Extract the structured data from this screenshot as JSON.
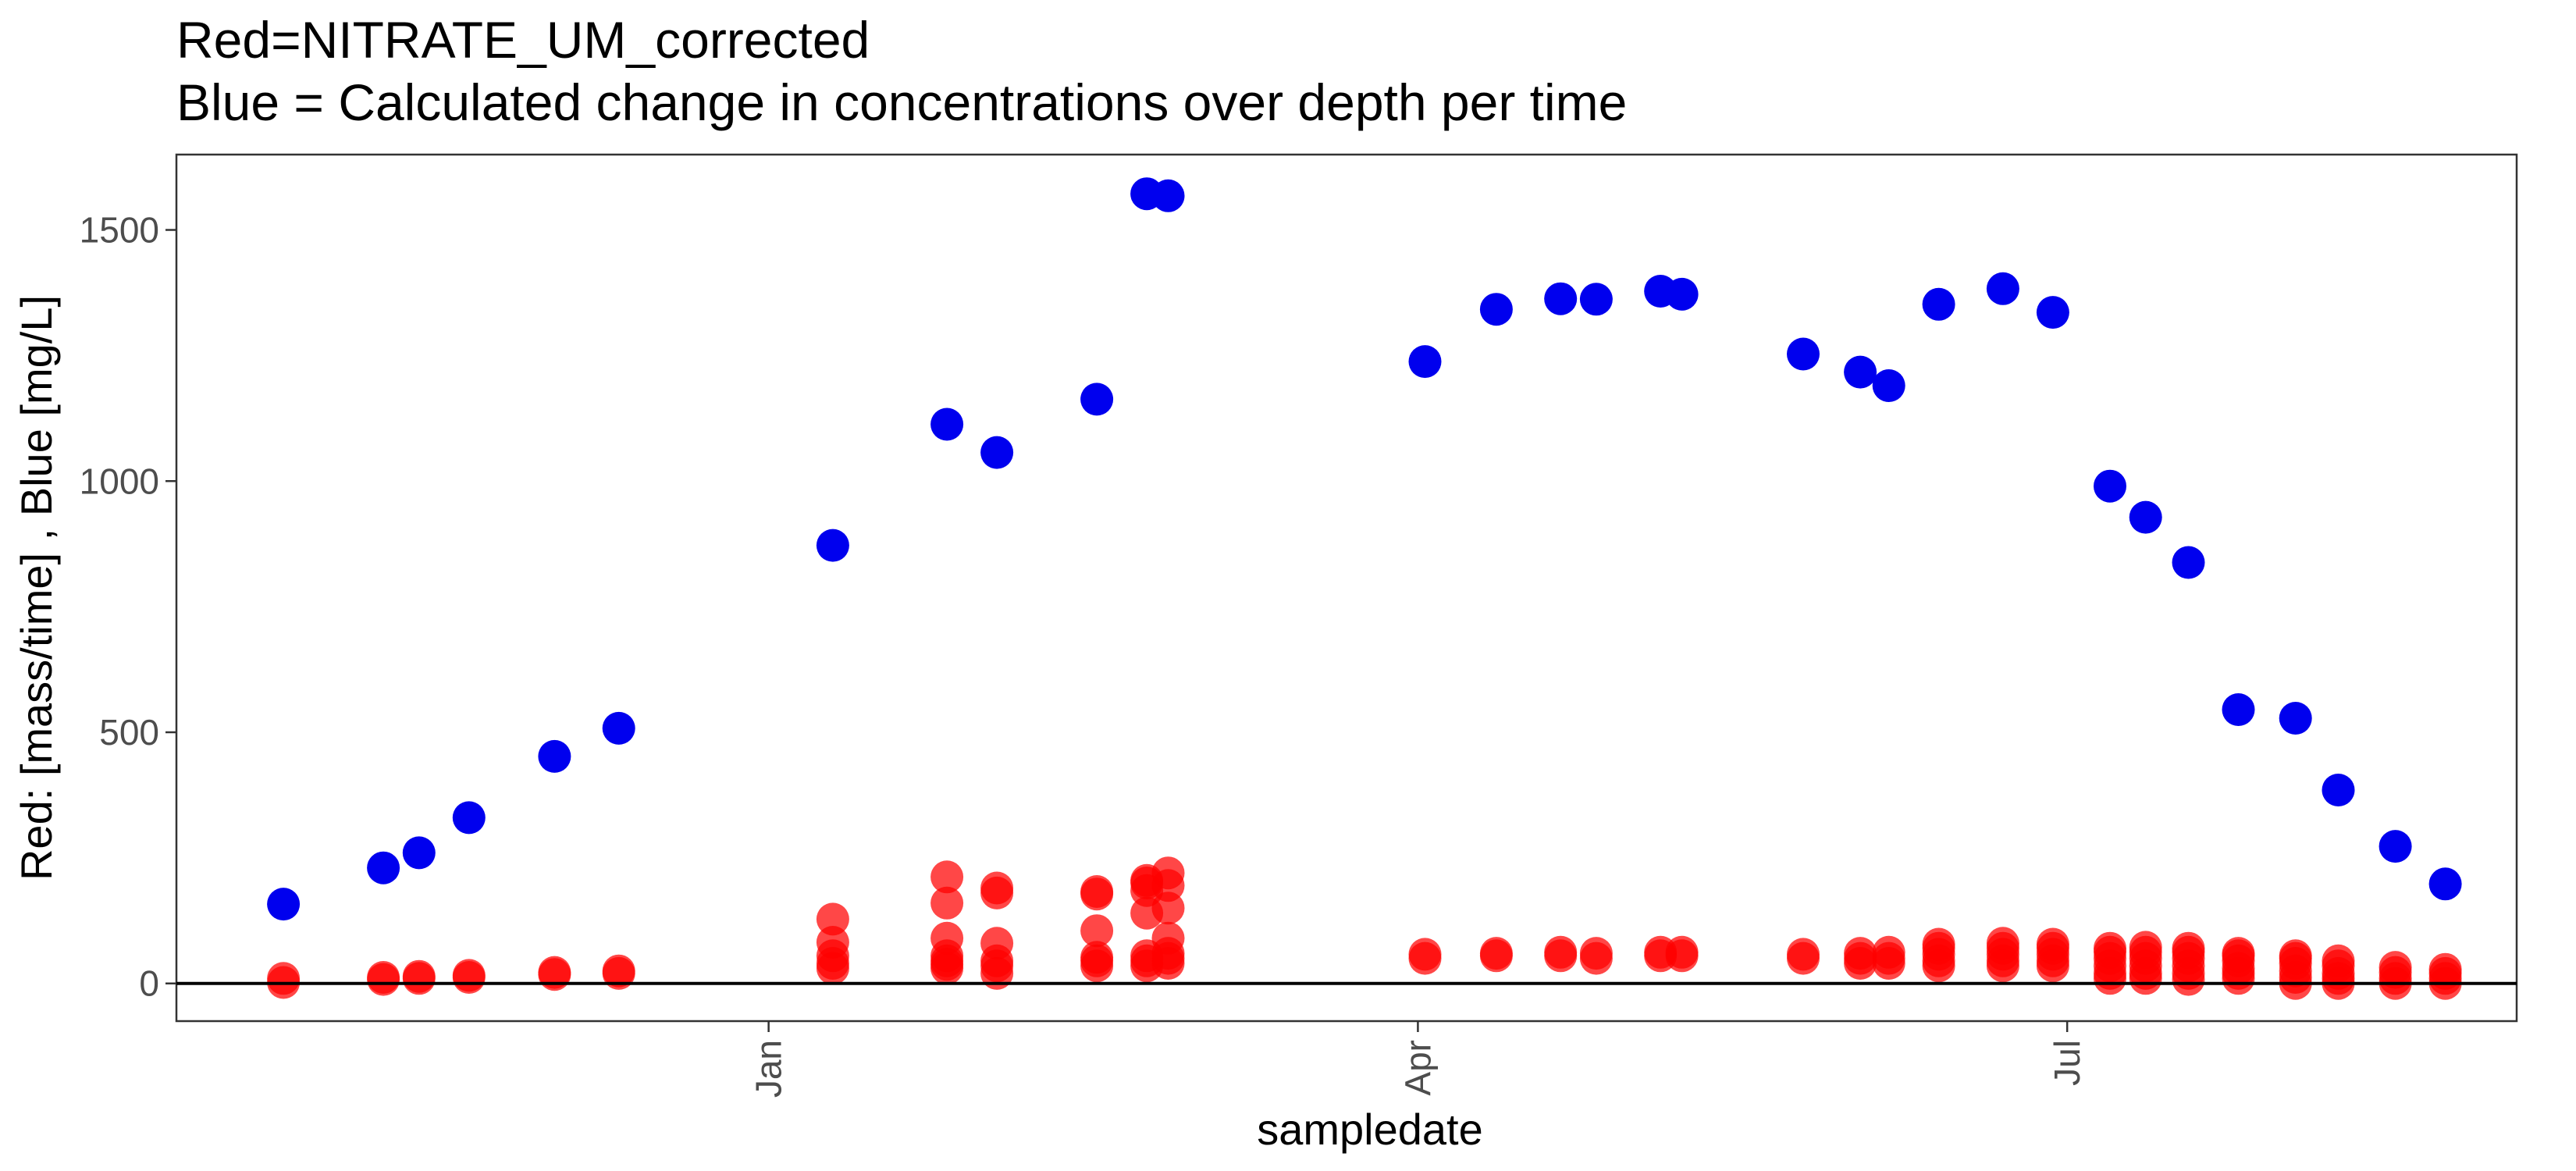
{
  "chart_data": {
    "type": "scatter",
    "title": "Red=NITRATE_UM_corrected",
    "subtitle": "Blue = Calculated change in concentrations over depth per time",
    "xlabel": "sampledate",
    "ylabel": "Red: [mass/time] , Blue [mg/L]",
    "x_ticks": [
      "Jan",
      "Apr",
      "Jul"
    ],
    "y_ticks": [
      0,
      500,
      1000,
      1500
    ],
    "ylim": [
      -75,
      1650
    ],
    "xlim": [
      "2007-10-10",
      "2008-09-02"
    ],
    "x_tick_dates": [
      "2008-01-01",
      "2008-04-01",
      "2008-07-01"
    ],
    "grid": false,
    "hline_y": 0,
    "colors": {
      "blue_series": "#0000ee",
      "red_series": "#ff0000",
      "hline": "#000000",
      "panel_border": "#333333"
    },
    "blue_points": [
      [
        "2007-10-25",
        158
      ],
      [
        "2007-11-08",
        230
      ],
      [
        "2007-11-13",
        260
      ],
      [
        "2007-11-20",
        330
      ],
      [
        "2007-12-02",
        452
      ],
      [
        "2007-12-11",
        508
      ],
      [
        "2008-01-10",
        872
      ],
      [
        "2008-01-26",
        1113
      ],
      [
        "2008-02-02",
        1057
      ],
      [
        "2008-02-16",
        1163
      ],
      [
        "2008-02-23",
        1572
      ],
      [
        "2008-02-26",
        1568
      ],
      [
        "2008-04-02",
        1238
      ],
      [
        "2008-04-12",
        1342
      ],
      [
        "2008-04-21",
        1363
      ],
      [
        "2008-04-26",
        1362
      ],
      [
        "2008-05-05",
        1378
      ],
      [
        "2008-05-08",
        1372
      ],
      [
        "2008-05-25",
        1253
      ],
      [
        "2008-06-02",
        1217
      ],
      [
        "2008-06-06",
        1190
      ],
      [
        "2008-06-13",
        1352
      ],
      [
        "2008-06-22",
        1383
      ],
      [
        "2008-06-29",
        1336
      ],
      [
        "2008-07-07",
        990
      ],
      [
        "2008-07-12",
        928
      ],
      [
        "2008-07-18",
        838
      ],
      [
        "2008-07-25",
        545
      ],
      [
        "2008-08-02",
        528
      ],
      [
        "2008-08-08",
        385
      ],
      [
        "2008-08-16",
        273
      ],
      [
        "2008-08-23",
        198
      ]
    ],
    "red_points": [
      [
        "2007-10-25",
        2
      ],
      [
        "2007-10-25",
        10
      ],
      [
        "2007-11-08",
        8
      ],
      [
        "2007-11-08",
        12
      ],
      [
        "2007-11-13",
        10
      ],
      [
        "2007-11-13",
        14
      ],
      [
        "2007-11-20",
        12
      ],
      [
        "2007-11-20",
        16
      ],
      [
        "2007-12-02",
        18
      ],
      [
        "2007-12-02",
        22
      ],
      [
        "2007-12-11",
        20
      ],
      [
        "2007-12-11",
        25
      ],
      [
        "2008-01-10",
        30
      ],
      [
        "2008-01-10",
        40
      ],
      [
        "2008-01-10",
        55
      ],
      [
        "2008-01-10",
        82
      ],
      [
        "2008-01-10",
        128
      ],
      [
        "2008-01-26",
        30
      ],
      [
        "2008-01-26",
        38
      ],
      [
        "2008-01-26",
        45
      ],
      [
        "2008-01-26",
        55
      ],
      [
        "2008-01-26",
        90
      ],
      [
        "2008-01-26",
        160
      ],
      [
        "2008-01-26",
        212
      ],
      [
        "2008-02-02",
        20
      ],
      [
        "2008-02-02",
        35
      ],
      [
        "2008-02-02",
        45
      ],
      [
        "2008-02-02",
        80
      ],
      [
        "2008-02-02",
        180
      ],
      [
        "2008-02-02",
        190
      ],
      [
        "2008-02-16",
        35
      ],
      [
        "2008-02-16",
        45
      ],
      [
        "2008-02-16",
        52
      ],
      [
        "2008-02-16",
        105
      ],
      [
        "2008-02-16",
        178
      ],
      [
        "2008-02-16",
        183
      ],
      [
        "2008-02-23",
        35
      ],
      [
        "2008-02-23",
        45
      ],
      [
        "2008-02-23",
        55
      ],
      [
        "2008-02-23",
        140
      ],
      [
        "2008-02-23",
        185
      ],
      [
        "2008-02-23",
        200
      ],
      [
        "2008-02-23",
        205
      ],
      [
        "2008-02-26",
        40
      ],
      [
        "2008-02-26",
        50
      ],
      [
        "2008-02-26",
        60
      ],
      [
        "2008-02-26",
        90
      ],
      [
        "2008-02-26",
        150
      ],
      [
        "2008-02-26",
        195
      ],
      [
        "2008-02-26",
        220
      ],
      [
        "2008-04-02",
        50
      ],
      [
        "2008-04-02",
        58
      ],
      [
        "2008-04-12",
        55
      ],
      [
        "2008-04-12",
        60
      ],
      [
        "2008-04-21",
        55
      ],
      [
        "2008-04-21",
        62
      ],
      [
        "2008-04-26",
        50
      ],
      [
        "2008-04-26",
        60
      ],
      [
        "2008-05-05",
        55
      ],
      [
        "2008-05-05",
        62
      ],
      [
        "2008-05-08",
        55
      ],
      [
        "2008-05-08",
        62
      ],
      [
        "2008-05-25",
        50
      ],
      [
        "2008-05-25",
        58
      ],
      [
        "2008-06-02",
        40
      ],
      [
        "2008-06-02",
        50
      ],
      [
        "2008-06-02",
        60
      ],
      [
        "2008-06-06",
        40
      ],
      [
        "2008-06-06",
        50
      ],
      [
        "2008-06-06",
        62
      ],
      [
        "2008-06-13",
        35
      ],
      [
        "2008-06-13",
        45
      ],
      [
        "2008-06-13",
        58
      ],
      [
        "2008-06-13",
        70
      ],
      [
        "2008-06-13",
        78
      ],
      [
        "2008-06-22",
        35
      ],
      [
        "2008-06-22",
        45
      ],
      [
        "2008-06-22",
        58
      ],
      [
        "2008-06-22",
        70
      ],
      [
        "2008-06-22",
        80
      ],
      [
        "2008-06-29",
        35
      ],
      [
        "2008-06-29",
        45
      ],
      [
        "2008-06-29",
        58
      ],
      [
        "2008-06-29",
        70
      ],
      [
        "2008-06-29",
        78
      ],
      [
        "2008-07-07",
        10
      ],
      [
        "2008-07-07",
        20
      ],
      [
        "2008-07-07",
        35
      ],
      [
        "2008-07-07",
        50
      ],
      [
        "2008-07-07",
        62
      ],
      [
        "2008-07-07",
        70
      ],
      [
        "2008-07-12",
        10
      ],
      [
        "2008-07-12",
        20
      ],
      [
        "2008-07-12",
        35
      ],
      [
        "2008-07-12",
        50
      ],
      [
        "2008-07-12",
        62
      ],
      [
        "2008-07-12",
        72
      ],
      [
        "2008-07-18",
        8
      ],
      [
        "2008-07-18",
        20
      ],
      [
        "2008-07-18",
        35
      ],
      [
        "2008-07-18",
        50
      ],
      [
        "2008-07-18",
        62
      ],
      [
        "2008-07-18",
        70
      ],
      [
        "2008-07-25",
        10
      ],
      [
        "2008-07-25",
        20
      ],
      [
        "2008-07-25",
        30
      ],
      [
        "2008-07-25",
        45
      ],
      [
        "2008-07-25",
        55
      ],
      [
        "2008-07-25",
        60
      ],
      [
        "2008-08-02",
        0
      ],
      [
        "2008-08-02",
        12
      ],
      [
        "2008-08-02",
        25
      ],
      [
        "2008-08-02",
        40
      ],
      [
        "2008-08-02",
        50
      ],
      [
        "2008-08-02",
        55
      ],
      [
        "2008-08-08",
        0
      ],
      [
        "2008-08-08",
        10
      ],
      [
        "2008-08-08",
        20
      ],
      [
        "2008-08-08",
        35
      ],
      [
        "2008-08-08",
        45
      ],
      [
        "2008-08-16",
        0
      ],
      [
        "2008-08-16",
        10
      ],
      [
        "2008-08-16",
        22
      ],
      [
        "2008-08-16",
        32
      ],
      [
        "2008-08-23",
        0
      ],
      [
        "2008-08-23",
        10
      ],
      [
        "2008-08-23",
        20
      ],
      [
        "2008-08-23",
        28
      ]
    ]
  }
}
